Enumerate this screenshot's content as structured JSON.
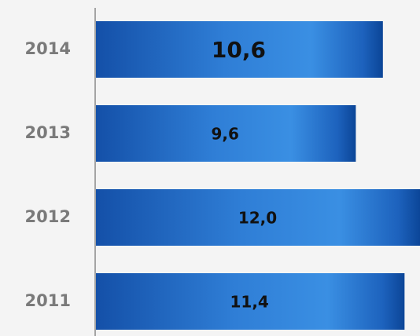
{
  "chart_data": {
    "type": "hbar",
    "categories": [
      "2014",
      "2013",
      "2012",
      "2011"
    ],
    "values": [
      10.6,
      9.6,
      12.0,
      11.4
    ],
    "value_labels": [
      "10,6",
      "9,6",
      "12,0",
      "11,4"
    ],
    "xlim": [
      0,
      12
    ]
  }
}
